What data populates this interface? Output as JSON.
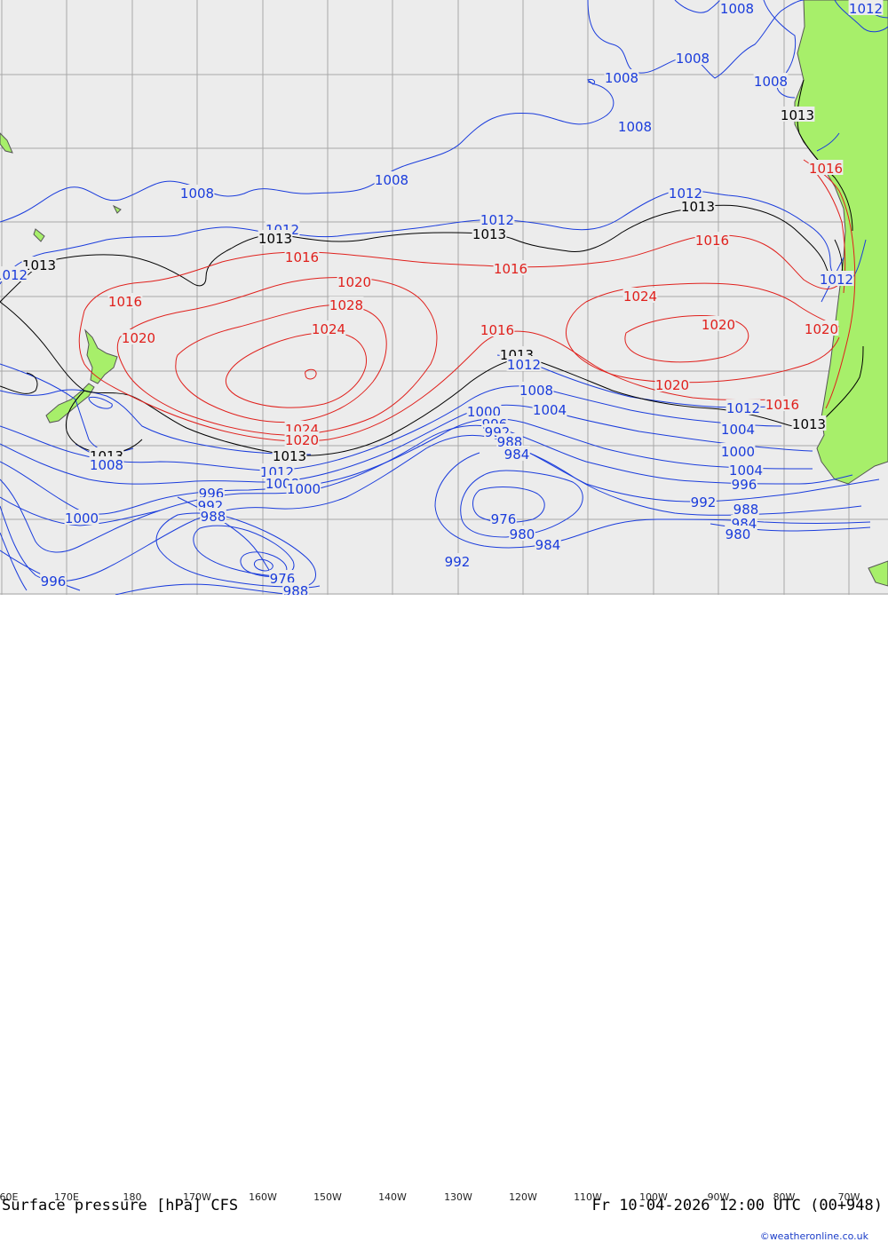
{
  "map": {
    "title": "Surface pressure [hPa] CFS",
    "valid_time": "Fr 10-04-2026 12:00 UTC (00+948)",
    "credit": "©weatheronline.co.uk",
    "colors": {
      "ocean": "#ececec",
      "land": "#a7ef6a",
      "grid": "#a8a8a8",
      "low": "#1a3cdc",
      "mid": "#000000",
      "high": "#e0201c",
      "coast": "#555555"
    },
    "lon_ticks": [
      "60E",
      "170E",
      "180",
      "170W",
      "160W",
      "150W",
      "140W",
      "130W",
      "120W",
      "110W",
      "100W",
      "90W",
      "80W",
      "70W"
    ]
  },
  "contour_labels": [
    {
      "text": "1008",
      "color": "low"
    },
    {
      "text": "1012",
      "color": "low"
    },
    {
      "text": "1008",
      "color": "low"
    },
    {
      "text": "1008",
      "color": "low"
    },
    {
      "text": "1008",
      "color": "low"
    },
    {
      "text": "1008",
      "color": "low"
    },
    {
      "text": "1008",
      "color": "low"
    },
    {
      "text": "1008",
      "color": "low"
    },
    {
      "text": "1012",
      "color": "low"
    },
    {
      "text": "1013",
      "color": "mid"
    },
    {
      "text": "1012",
      "color": "low"
    },
    {
      "text": "1013",
      "color": "mid"
    },
    {
      "text": "1013",
      "color": "mid"
    },
    {
      "text": "1012",
      "color": "low"
    },
    {
      "text": "1013",
      "color": "mid"
    },
    {
      "text": "1012",
      "color": "low"
    },
    {
      "text": "1013",
      "color": "mid"
    },
    {
      "text": "1016",
      "color": "high"
    },
    {
      "text": "1016",
      "color": "high"
    },
    {
      "text": "1016",
      "color": "high"
    },
    {
      "text": "1016",
      "color": "high"
    },
    {
      "text": "1012",
      "color": "low"
    },
    {
      "text": "1020",
      "color": "high"
    },
    {
      "text": "1024",
      "color": "high"
    },
    {
      "text": "1016",
      "color": "high"
    },
    {
      "text": "1020",
      "color": "high"
    },
    {
      "text": "1028",
      "color": "high"
    },
    {
      "text": "1020",
      "color": "high"
    },
    {
      "text": "1024",
      "color": "high"
    },
    {
      "text": "1020",
      "color": "high"
    },
    {
      "text": "1016",
      "color": "high"
    },
    {
      "text": "1013",
      "color": "mid"
    },
    {
      "text": "1012",
      "color": "low"
    },
    {
      "text": "1020",
      "color": "high"
    },
    {
      "text": "1008",
      "color": "low"
    },
    {
      "text": "1004",
      "color": "low"
    },
    {
      "text": "1000",
      "color": "low"
    },
    {
      "text": "1016",
      "color": "high"
    },
    {
      "text": "1012",
      "color": "low"
    },
    {
      "text": "1013",
      "color": "mid"
    },
    {
      "text": "996",
      "color": "low"
    },
    {
      "text": "992",
      "color": "low"
    },
    {
      "text": "988",
      "color": "low"
    },
    {
      "text": "984",
      "color": "low"
    },
    {
      "text": "1024",
      "color": "high"
    },
    {
      "text": "1020",
      "color": "high"
    },
    {
      "text": "1013",
      "color": "mid"
    },
    {
      "text": "1008",
      "color": "low"
    },
    {
      "text": "1004",
      "color": "low"
    },
    {
      "text": "1000",
      "color": "low"
    },
    {
      "text": "1012",
      "color": "low"
    },
    {
      "text": "1013",
      "color": "mid"
    },
    {
      "text": "1008",
      "color": "low"
    },
    {
      "text": "1004",
      "color": "low"
    },
    {
      "text": "1000",
      "color": "low"
    },
    {
      "text": "996",
      "color": "low"
    },
    {
      "text": "992",
      "color": "low"
    },
    {
      "text": "988",
      "color": "low"
    },
    {
      "text": "984",
      "color": "low"
    },
    {
      "text": "980",
      "color": "low"
    },
    {
      "text": "996",
      "color": "low"
    },
    {
      "text": "992",
      "color": "low"
    },
    {
      "text": "988",
      "color": "low"
    },
    {
      "text": "1000",
      "color": "low"
    },
    {
      "text": "976",
      "color": "low"
    },
    {
      "text": "980",
      "color": "low"
    },
    {
      "text": "984",
      "color": "low"
    },
    {
      "text": "992",
      "color": "low"
    },
    {
      "text": "976",
      "color": "low"
    },
    {
      "text": "988",
      "color": "low"
    },
    {
      "text": "996",
      "color": "low"
    }
  ]
}
